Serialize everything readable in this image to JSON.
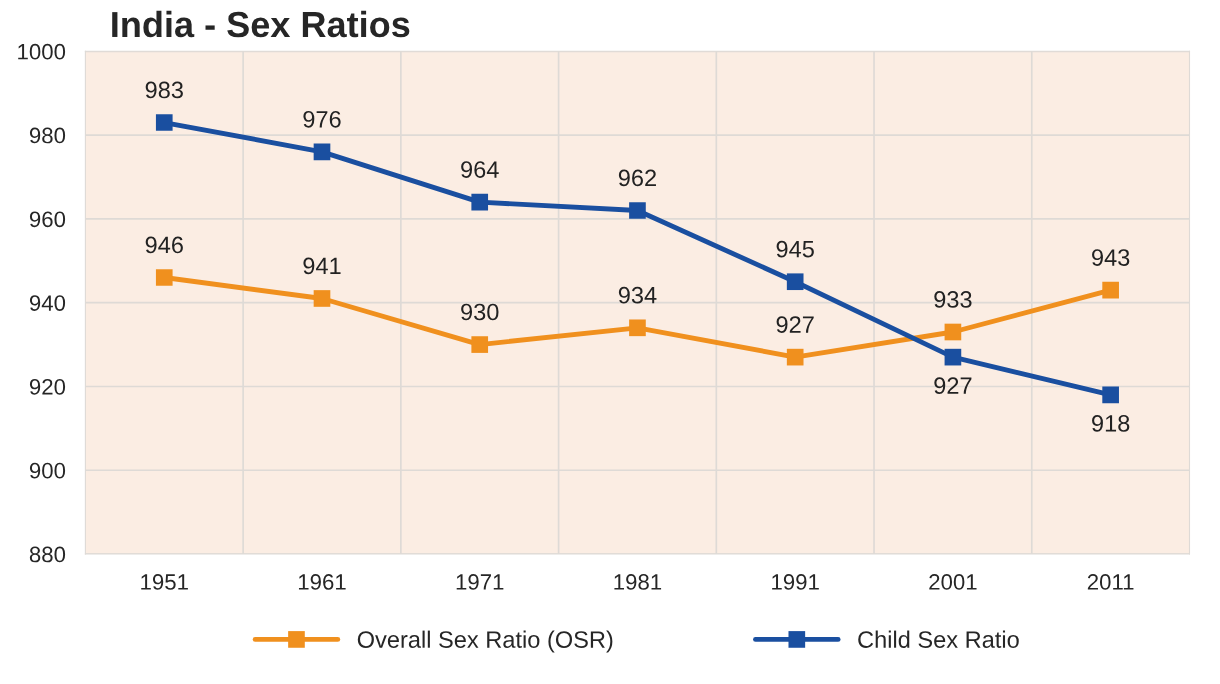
{
  "chart_data": {
    "type": "line",
    "title": "India - Sex Ratios",
    "categories": [
      "1951",
      "1961",
      "1971",
      "1981",
      "1991",
      "2001",
      "2011"
    ],
    "series": [
      {
        "name": "Overall Sex Ratio (OSR)",
        "color": "#f0901e",
        "values": [
          946,
          941,
          930,
          934,
          927,
          933,
          943
        ]
      },
      {
        "name": "Child Sex Ratio",
        "color": "#1a4fa0",
        "values": [
          983,
          976,
          964,
          962,
          945,
          927,
          918
        ]
      }
    ],
    "ylim": [
      880,
      1000
    ],
    "yticks": [
      880,
      900,
      920,
      940,
      960,
      980,
      1000
    ],
    "grid": true,
    "legend": "bottom",
    "marker": "square",
    "line_style": "solid",
    "data_labels": true
  }
}
